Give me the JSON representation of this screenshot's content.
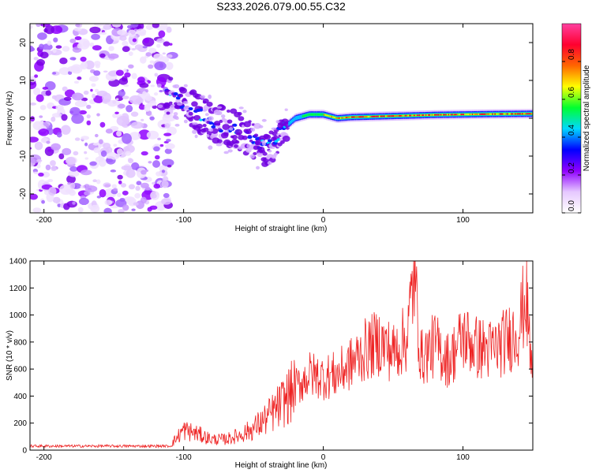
{
  "title": "S233.2026.079.00.55.C32",
  "chart_data": [
    {
      "type": "heatmap",
      "title": "S233.2026.079.00.55.C32",
      "xlabel": "Height of straight line (km)",
      "ylabel": "Frequency (Hz)",
      "xlim": [
        -210,
        150
      ],
      "ylim": [
        -25,
        25
      ],
      "xticks": [
        -200,
        -100,
        0,
        100
      ],
      "xtick_labels": [
        "-200",
        "-100",
        "0",
        "100"
      ],
      "yticks": [
        -20,
        -10,
        0,
        10,
        20
      ],
      "ytick_labels": [
        "-20",
        "-10",
        "0",
        "10",
        "20"
      ],
      "colorbar": {
        "label": "Normalized spectral amplitude",
        "range": [
          0,
          1
        ],
        "ticks": [
          0.0,
          0.2,
          0.4,
          0.6,
          0.8
        ],
        "tick_labels": [
          "0.0",
          "0.2",
          "0.4",
          "0.6",
          "0.8"
        ],
        "colors": [
          "#ffffff",
          "#e6c8ff",
          "#8f00ff",
          "#0000ff",
          "#00d8ff",
          "#00ff30",
          "#ffff00",
          "#ff6600",
          "#ff0030",
          "#ff40a0"
        ]
      },
      "trace": {
        "x": [
          -110,
          -100,
          -90,
          -80,
          -70,
          -60,
          -50,
          -40,
          -35,
          -30,
          -20,
          -10,
          0,
          10,
          20,
          40,
          60,
          80,
          100,
          120,
          150
        ],
        "frequency": [
          6,
          4,
          1.5,
          -1,
          -2.5,
          -3.5,
          -6,
          -8,
          -6,
          -3,
          0,
          1,
          1,
          0,
          0.3,
          0.5,
          0.7,
          0.9,
          1.0,
          1.1,
          1.2
        ]
      },
      "noise_region": {
        "x": [
          -210,
          -108
        ],
        "frequency": [
          -25,
          25
        ]
      }
    },
    {
      "type": "line",
      "xlabel": "Height of straight line (km)",
      "ylabel": "SNR (10 * v/v)",
      "xlim": [
        -210,
        150
      ],
      "ylim": [
        0,
        1400
      ],
      "xticks": [
        -200,
        -100,
        0,
        100
      ],
      "xtick_labels": [
        "-200",
        "-100",
        "0",
        "100"
      ],
      "yticks": [
        0,
        200,
        400,
        600,
        800,
        1000,
        1200,
        1400
      ],
      "ytick_labels": [
        "0",
        "200",
        "400",
        "600",
        "800",
        "1000",
        "1200",
        "1400"
      ],
      "series": [
        {
          "name": "SNR",
          "color": "#ee2222",
          "x": [
            -210,
            -150,
            -110,
            -100,
            -90,
            -80,
            -70,
            -60,
            -50,
            -40,
            -30,
            -20,
            -10,
            0,
            10,
            20,
            30,
            40,
            50,
            60,
            65,
            70,
            80,
            90,
            100,
            110,
            120,
            130,
            140,
            145,
            150
          ],
          "values": [
            30,
            30,
            30,
            150,
            120,
            80,
            80,
            110,
            160,
            240,
            340,
            460,
            560,
            540,
            560,
            640,
            740,
            800,
            720,
            840,
            1300,
            680,
            780,
            660,
            840,
            760,
            740,
            800,
            900,
            1150,
            500
          ]
        }
      ]
    }
  ]
}
